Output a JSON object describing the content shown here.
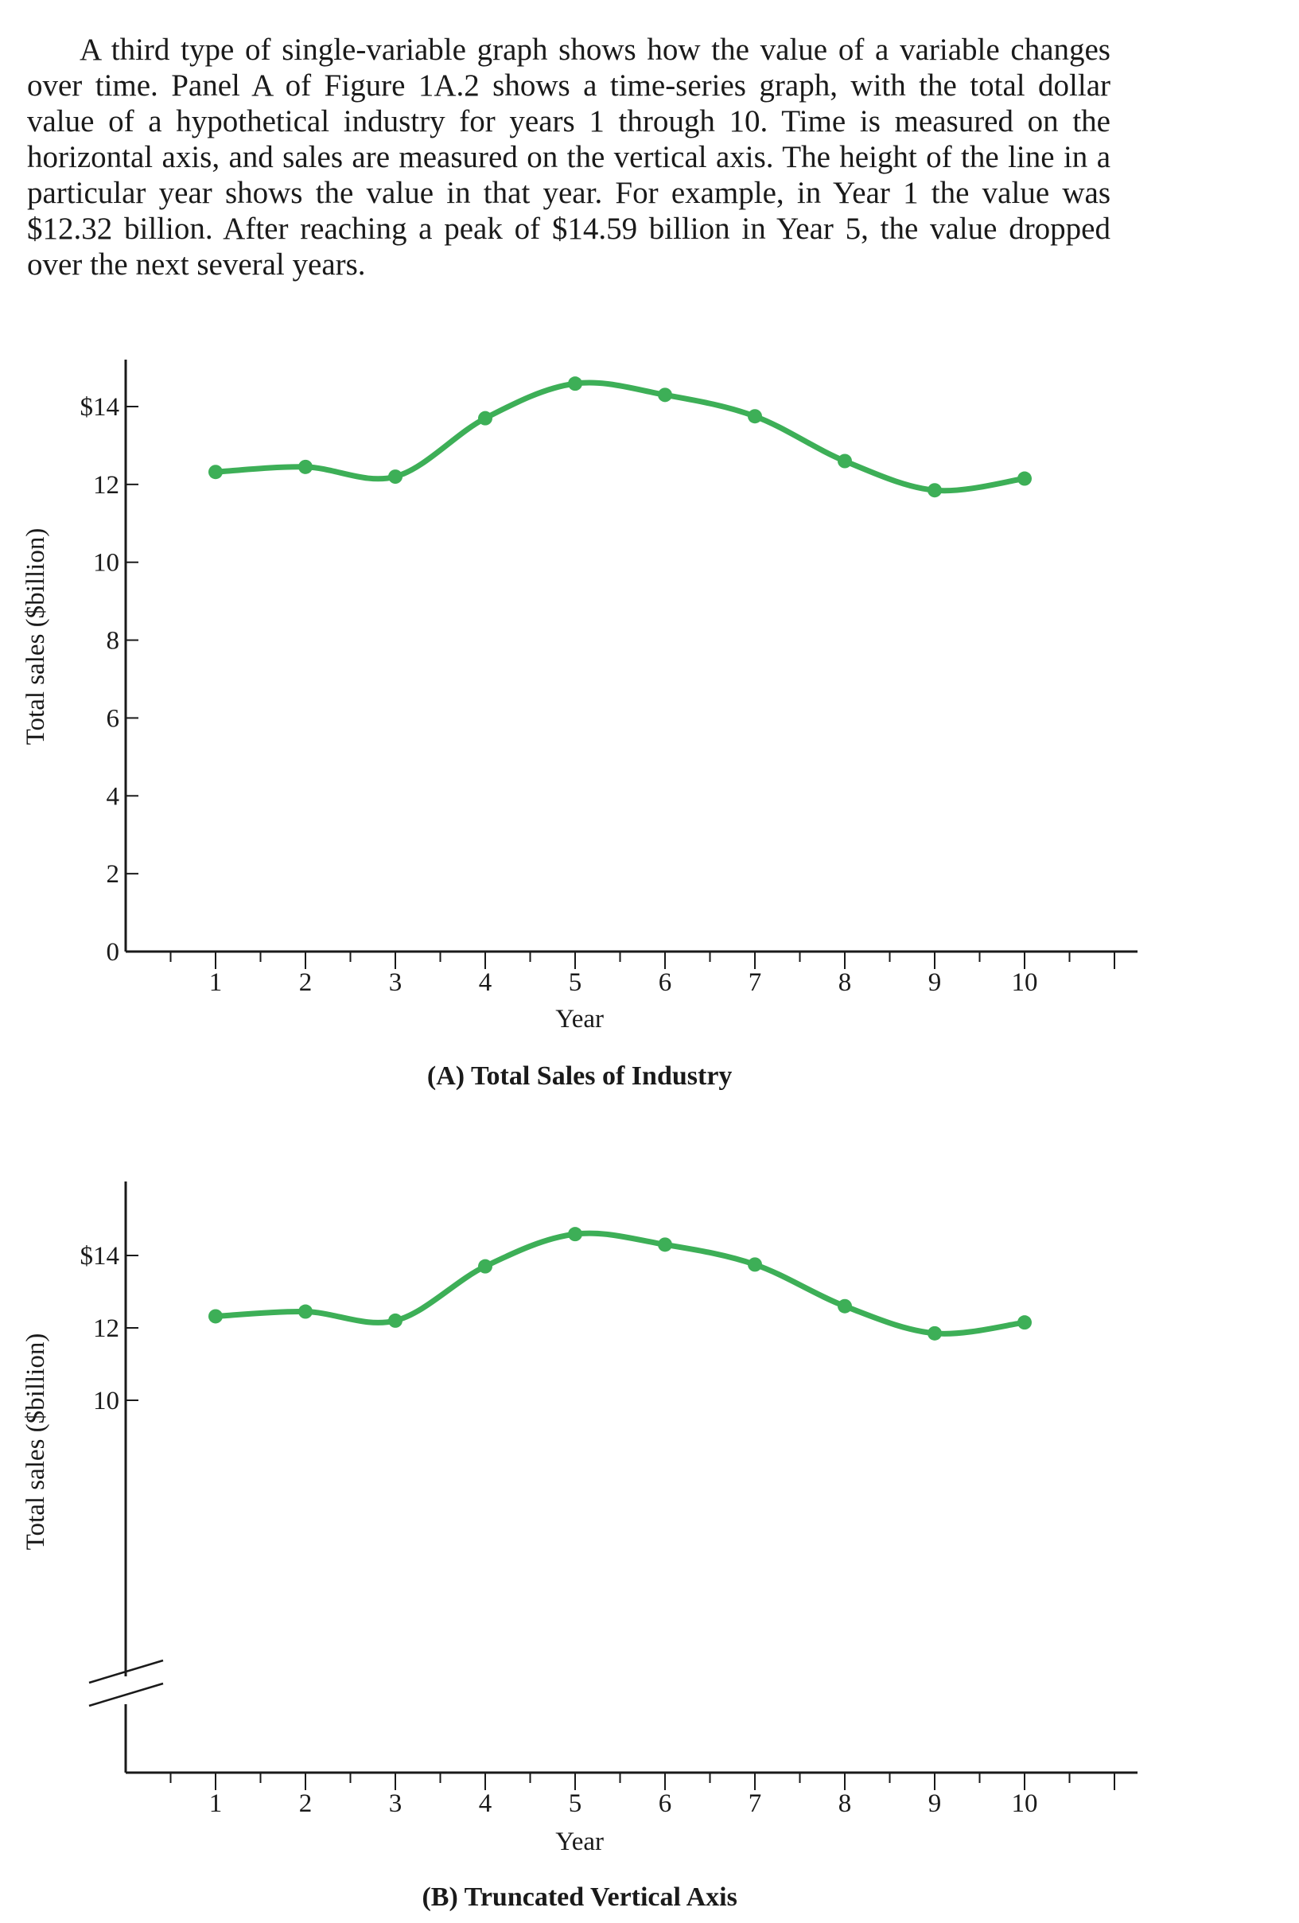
{
  "paragraph": "A third type of single-variable graph shows how the value of a variable changes over time. Panel A of Figure 1A.2 shows a time-series graph, with the total dollar value of a hypothetical industry for years 1 through 10. Time is measured on the horizontal axis, and sales are measured on the vertical axis. The height of the line in a particular year shows the value in that year. For example, in Year 1 the value was $12.32 billion. After reaching a peak of $14.59 billion in Year 5, the value dropped over the next several years.",
  "chart_data": [
    {
      "type": "line",
      "panel_title": "(A) Total Sales of Industry",
      "xlabel": "Year",
      "ylabel": "Total sales ($billion)",
      "x": [
        1,
        2,
        3,
        4,
        5,
        6,
        7,
        8,
        9,
        10
      ],
      "values": [
        12.32,
        12.45,
        12.2,
        13.7,
        14.59,
        14.3,
        13.75,
        12.6,
        11.85,
        12.15
      ],
      "xlim": [
        0,
        11.5
      ],
      "ylim": [
        0,
        15.2
      ],
      "yticks": [
        0,
        2,
        4,
        6,
        8,
        10,
        12,
        14
      ],
      "ytick_labels": [
        "0",
        "2",
        "4",
        "6",
        "8",
        "10",
        "12",
        "$14"
      ],
      "xtick_labels": [
        "1",
        "2",
        "3",
        "4",
        "5",
        "6",
        "7",
        "8",
        "9",
        "10"
      ],
      "truncated_axis": false,
      "line_color": "#3daf57"
    },
    {
      "type": "line",
      "panel_title": "(B) Truncated Vertical Axis",
      "xlabel": "Year",
      "ylabel": "Total sales ($billion)",
      "x": [
        1,
        2,
        3,
        4,
        5,
        6,
        7,
        8,
        9,
        10
      ],
      "values": [
        12.32,
        12.45,
        12.2,
        13.7,
        14.59,
        14.3,
        13.75,
        12.6,
        11.85,
        12.15
      ],
      "xlim": [
        0,
        11.5
      ],
      "ylim": [
        10,
        14.65
      ],
      "yticks": [
        10,
        12,
        14
      ],
      "ytick_labels": [
        "10",
        "12",
        "$14"
      ],
      "xtick_labels": [
        "1",
        "2",
        "3",
        "4",
        "5",
        "6",
        "7",
        "8",
        "9",
        "10"
      ],
      "truncated_axis": true,
      "line_color": "#3daf57"
    }
  ]
}
